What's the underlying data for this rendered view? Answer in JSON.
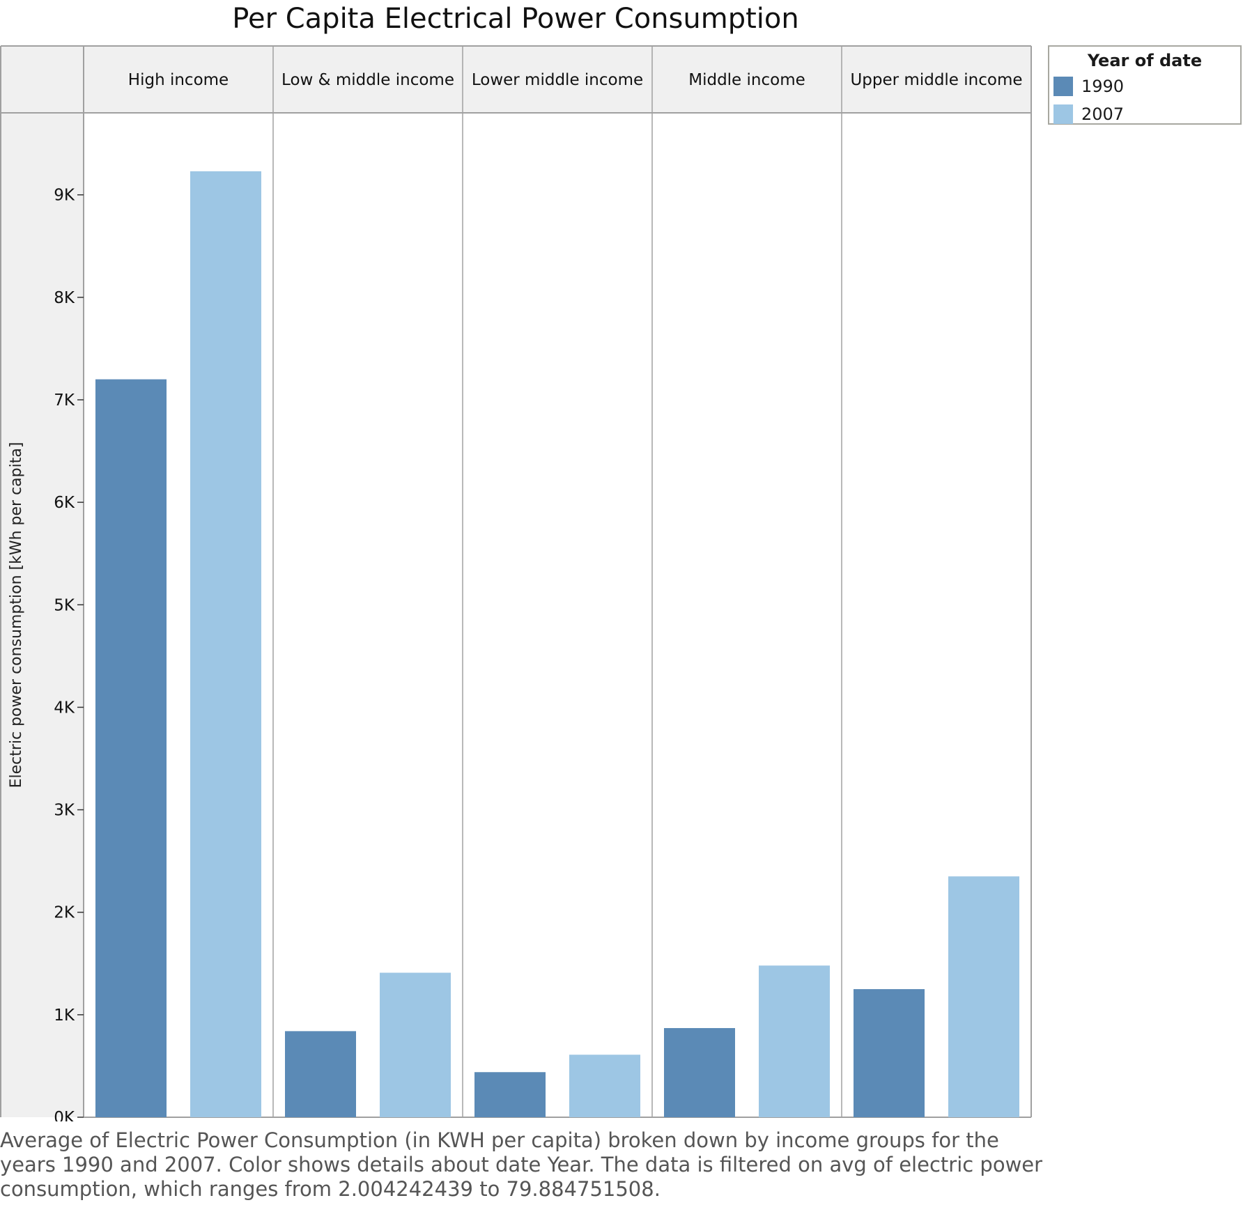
{
  "chart_data": {
    "type": "bar",
    "title": "Per Capita Electrical Power Consumption",
    "ylabel": "Electric power consumption  [kWh per capita]",
    "xlabel": "",
    "facets": [
      "High income",
      "Low & middle income",
      "Lower middle income",
      "Middle income",
      "Upper middle income"
    ],
    "series": [
      {
        "name": "1990",
        "color": "#5b8ab6",
        "values": [
          7200,
          840,
          440,
          870,
          1250
        ]
      },
      {
        "name": "2007",
        "color": "#9dc6e4",
        "values": [
          9230,
          1410,
          610,
          1480,
          2350
        ]
      }
    ],
    "ylim": [
      0,
      9800
    ],
    "yticks": [
      0,
      1000,
      2000,
      3000,
      4000,
      5000,
      6000,
      7000,
      8000,
      9000
    ],
    "ytick_labels": [
      "0K",
      "1K",
      "2K",
      "3K",
      "4K",
      "5K",
      "6K",
      "7K",
      "8K",
      "9K"
    ],
    "legend": {
      "title": "Year of date",
      "placement": "top-right"
    },
    "grid": false
  },
  "caption": "Average of Electric Power Consumption (in KWH per capita) broken down by income groups for the years 1990 and 2007.  Color shows details about date Year. The data is filtered on avg of electric power consumption, which ranges from 2.004242439 to 79.884751508."
}
